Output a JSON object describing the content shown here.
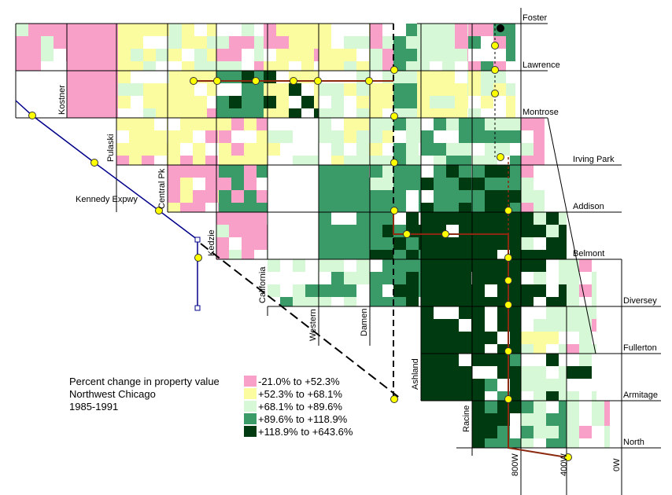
{
  "legend": {
    "title_lines": [
      "Percent change in property value",
      "Northwest Chicago",
      "1985-1991"
    ],
    "classes": [
      {
        "label": "-21.0% to +52.3%",
        "color": "#f8a0c8"
      },
      {
        "label": "+52.3% to +68.1%",
        "color": "#fbfba0"
      },
      {
        "label": "+68.1% to +89.6%",
        "color": "#d6f8d6"
      },
      {
        "label": "+89.6% to +118.9%",
        "color": "#3a9a68"
      },
      {
        "label": "+118.9% to +643.6%",
        "color": "#003a10"
      }
    ]
  },
  "streets": {
    "east_west": [
      "Foster",
      "Lawrence",
      "Montrose",
      "Irving Park",
      "Addison",
      "Belmont",
      "Diversey",
      "Fullerton",
      "Armitage",
      "North"
    ],
    "north_south": [
      "Kostner",
      "Pulaski",
      "Central Pk",
      "Kedzie",
      "California",
      "Western",
      "Damen",
      "Ashland",
      "Racine",
      "800W",
      "400W",
      "0W"
    ],
    "diagonal": [
      "Kennedy Expwy"
    ]
  },
  "colors": {
    "cta_line": "#8b2a10",
    "expressway": "#00008b",
    "station": "#ffff00"
  }
}
